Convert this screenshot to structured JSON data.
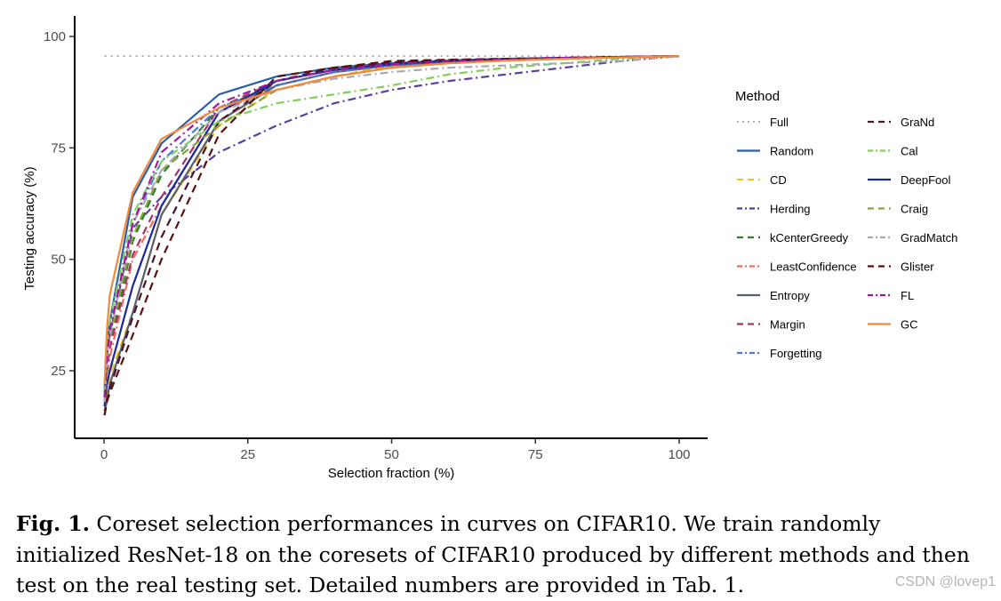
{
  "chart_data": {
    "type": "line",
    "title": "",
    "xlabel": "Selection fraction (%)",
    "ylabel": "Testing accuracy (%)",
    "xlim": [
      0,
      100
    ],
    "ylim": [
      14,
      104
    ],
    "x_ticks": [
      0,
      25,
      50,
      75,
      100
    ],
    "y_ticks": [
      25,
      50,
      75,
      100
    ],
    "legend_title": "Method",
    "legend_position": "right",
    "x": [
      0.1,
      0.5,
      1,
      5,
      10,
      20,
      30,
      40,
      50,
      60,
      70,
      80,
      90,
      100
    ],
    "series": [
      {
        "name": "Full",
        "color": "#9a9a9a",
        "dash": "dotted",
        "values": [
          95.6,
          95.6,
          95.6,
          95.6,
          95.6,
          95.6,
          95.6,
          95.6,
          95.6,
          95.6,
          95.6,
          95.6,
          95.6,
          95.6
        ]
      },
      {
        "name": "Random",
        "color": "#2c5ea8",
        "dash": "solid",
        "values": [
          21,
          30,
          36,
          64,
          76,
          87,
          91,
          93,
          94,
          94.6,
          95,
          95.2,
          95.4,
          95.6
        ]
      },
      {
        "name": "CD",
        "color": "#f5c518",
        "dash": "dashed",
        "values": [
          16,
          20,
          24,
          38,
          60,
          80,
          88,
          91,
          93.5,
          94.3,
          94.8,
          95.1,
          95.4,
          95.6
        ]
      },
      {
        "name": "Herding",
        "color": "#5b3fa0",
        "dash": "dashdot",
        "values": [
          20,
          28,
          33,
          57,
          64,
          74,
          80,
          85,
          88,
          90,
          91.5,
          93,
          94.5,
          95.6
        ]
      },
      {
        "name": "kCenterGreedy",
        "color": "#2e7d32",
        "dash": "dashed",
        "values": [
          18,
          26,
          30,
          54,
          69,
          84,
          89,
          92,
          93.5,
          94.3,
          94.8,
          95.1,
          95.4,
          95.6
        ]
      },
      {
        "name": "LeastConfidence",
        "color": "#f26b5b",
        "dash": "dashdot",
        "values": [
          17,
          24,
          28,
          50,
          62,
          83,
          89,
          92,
          93.5,
          94.3,
          94.8,
          95.1,
          95.4,
          95.6
        ]
      },
      {
        "name": "Entropy",
        "color": "#5a5f6e",
        "dash": "solid",
        "values": [
          16,
          18,
          22,
          38,
          60,
          81,
          89,
          92,
          93.6,
          94.3,
          94.8,
          95.1,
          95.4,
          95.6
        ]
      },
      {
        "name": "Margin",
        "color": "#a83262",
        "dash": "dashed",
        "values": [
          18,
          25,
          30,
          51,
          64,
          84,
          90,
          92.5,
          93.8,
          94.5,
          94.9,
          95.2,
          95.4,
          95.6
        ]
      },
      {
        "name": "Forgetting",
        "color": "#4e79d6",
        "dash": "dashdot",
        "values": [
          19,
          29,
          34,
          58,
          72,
          84,
          89,
          92,
          93.5,
          94.3,
          94.8,
          95.1,
          95.4,
          95.6
        ]
      },
      {
        "name": "GraNd",
        "color": "#4a1430",
        "dash": "dashed",
        "values": [
          15,
          18,
          21,
          37,
          55,
          81,
          90,
          93,
          94.2,
          94.7,
          95,
          95.2,
          95.4,
          95.6
        ]
      },
      {
        "name": "Cal",
        "color": "#7fcf5a",
        "dash": "dashdot",
        "values": [
          20,
          30,
          36,
          60,
          72,
          81,
          85,
          87,
          89,
          91.5,
          93,
          94,
          95,
          95.6
        ]
      },
      {
        "name": "DeepFool",
        "color": "#1a2a9a",
        "dash": "solid",
        "values": [
          17,
          22,
          25,
          44,
          62,
          83,
          90,
          92.5,
          93.8,
          94.5,
          94.9,
          95.2,
          95.4,
          95.6
        ]
      },
      {
        "name": "Craig",
        "color": "#8aa03a",
        "dash": "dashed",
        "values": [
          18,
          27,
          32,
          55,
          70,
          80,
          88,
          91,
          93,
          94,
          94.6,
          95,
          95.3,
          95.6
        ]
      },
      {
        "name": "GradMatch",
        "color": "#a9a9b4",
        "dash": "dashdot",
        "values": [
          18,
          28,
          33,
          58,
          70,
          83,
          88,
          90.5,
          92,
          93,
          93.5,
          94,
          94.5,
          95.6
        ]
      },
      {
        "name": "Glister",
        "color": "#5a0f0f",
        "dash": "dashed",
        "values": [
          15,
          18,
          20,
          33,
          50,
          78,
          91,
          93,
          94.5,
          94.8,
          95,
          95.2,
          95.4,
          95.6
        ]
      },
      {
        "name": "FL",
        "color": "#a0189a",
        "dash": "dashdot",
        "values": [
          19,
          28,
          34,
          58,
          74,
          85,
          90,
          92.5,
          93.8,
          94.5,
          94.9,
          95.2,
          95.4,
          95.6
        ]
      },
      {
        "name": "GC",
        "color": "#ef8a3c",
        "dash": "solid",
        "values": [
          22,
          34,
          42,
          65,
          77,
          84,
          88,
          91,
          93,
          94,
          94.6,
          95,
          95.3,
          95.6
        ]
      }
    ]
  },
  "caption": {
    "label": "Fig. 1.",
    "text": " Coreset selection performances in curves on CIFAR10. We train randomly initialized ResNet-18 on the coresets of CIFAR10 produced by different methods and then test on the real testing set. Detailed numbers are provided in Tab. 1."
  },
  "watermark": "CSDN @lovep1"
}
